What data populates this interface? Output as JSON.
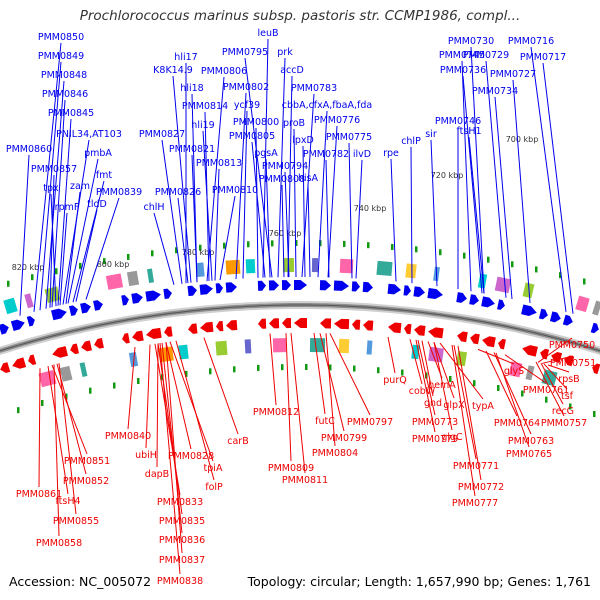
{
  "title": "Prochlorococcus marinus subsp. pastoris str. CCMP1986, compl...",
  "footer": {
    "accession": "Accession: NC_005072",
    "meta": "Topology: circular; Length: 1,657,990 bp; Genes: 1,761"
  },
  "colors": {
    "forward": "#0000ee",
    "reverse": "#ee0000",
    "backbone": "#8c8c8c",
    "tick": "#119911"
  },
  "kbp_labels": [
    "820 kbp",
    "800 kbp",
    "780 kbp",
    "760 kbp",
    "740 kbp",
    "720 kbp",
    "700 kbp"
  ],
  "forward_labels": [
    "PMM0850",
    "PMM0849",
    "PMM0848",
    "PMM0846",
    "PMM0845",
    "PNIL34,AT103",
    "pmbA",
    "PMM0860",
    "PMM0857",
    "fmt",
    "tpx",
    "zam",
    "rpmF",
    "tldD",
    "PMM0839",
    "hli17",
    "K8K14.9",
    "hli18",
    "PMM0806",
    "PMM0814",
    "PMM0827",
    "hli19",
    "PMM0821",
    "PMM0813",
    "PMM0826",
    "chlH",
    "PMM0810",
    "leuB",
    "PMM0795",
    "prk",
    "accD",
    "PMM0802",
    "ycf39",
    "PMM0783",
    "cbbA,cfxA,fbaA,fda",
    "PMM0800",
    "proB",
    "PMM0776",
    "PMM0805",
    "lpxD",
    "pgsA",
    "PMM0808",
    "hisA",
    "PMM0794",
    "PMM0782",
    "ilvD",
    "PMM0775",
    "rpe",
    "chlP",
    "sir",
    "PMM0746",
    "PMM0745",
    "PMM0730",
    "PMM0716",
    "PMM0729",
    "PMM0717",
    "PMM0736",
    "PMM0727",
    "PMM0734",
    "ftsH1"
  ],
  "reverse_labels": [
    "PMM0840",
    "ubiH",
    "dapB",
    "PMM0828",
    "tpiA",
    "folP",
    "carB",
    "PMM0851",
    "PMM0852",
    "PMM0861",
    "ftsH4",
    "PMM0855",
    "PMM0858",
    "PMM0833",
    "PMM0835",
    "PMM0836",
    "PMM0837",
    "PMM0838",
    "PMM0812",
    "PMM0809",
    "PMM0811",
    "futC",
    "PMM0799",
    "PMM0797",
    "PMM0804",
    "purQ",
    "cobW",
    "PMM0779",
    "PMM0773",
    "gnd",
    "hemA",
    "glpX",
    "typA",
    "glgC",
    "PMM0771",
    "PMM0772",
    "PMM0777",
    "glyS",
    "PMM0761",
    "PMM0764",
    "PMM0763",
    "PMM0765",
    "PMM0750",
    "PMM0751",
    "rpsB",
    "tsf",
    "recG",
    "PMM0757"
  ]
}
